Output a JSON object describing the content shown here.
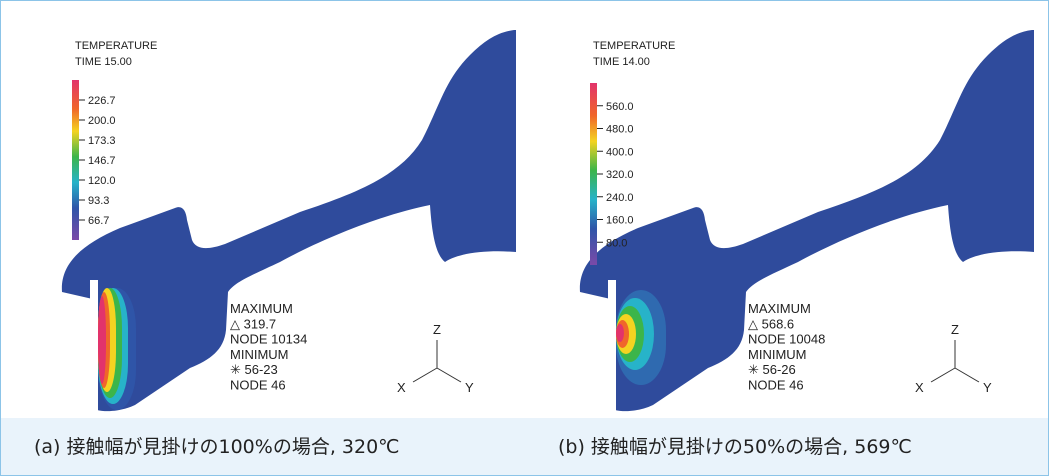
{
  "panels": [
    {
      "title": "TEMPERATURE",
      "time": "TIME 15.00",
      "scale": [
        "226.7",
        "200.0",
        "173.3",
        "146.7",
        "120.0",
        "93.3",
        "66.7"
      ],
      "info": [
        "MAXIMUM",
        "△ 319.7",
        "NODE 10134",
        "MINIMUM",
        "✳ 56-23",
        "NODE 46"
      ],
      "axes": {
        "z": "Z",
        "x": "X",
        "y": "Y"
      },
      "caption": "(a) 接触幅が見掛けの100%の場合, 320℃"
    },
    {
      "title": "TEMPERATURE",
      "time": "TIME 14.00",
      "scale": [
        "560.0",
        "480.0",
        "400.0",
        "320.0",
        "240.0",
        "160.0",
        "80.0"
      ],
      "info": [
        "MAXIMUM",
        "△ 568.6",
        "NODE 10048",
        "MINIMUM",
        "✳ 56-26",
        "NODE 46"
      ],
      "axes": {
        "z": "Z",
        "x": "X",
        "y": "Y"
      },
      "caption": "(b) 接触幅が見掛けの50%の場合, 569℃"
    }
  ]
}
